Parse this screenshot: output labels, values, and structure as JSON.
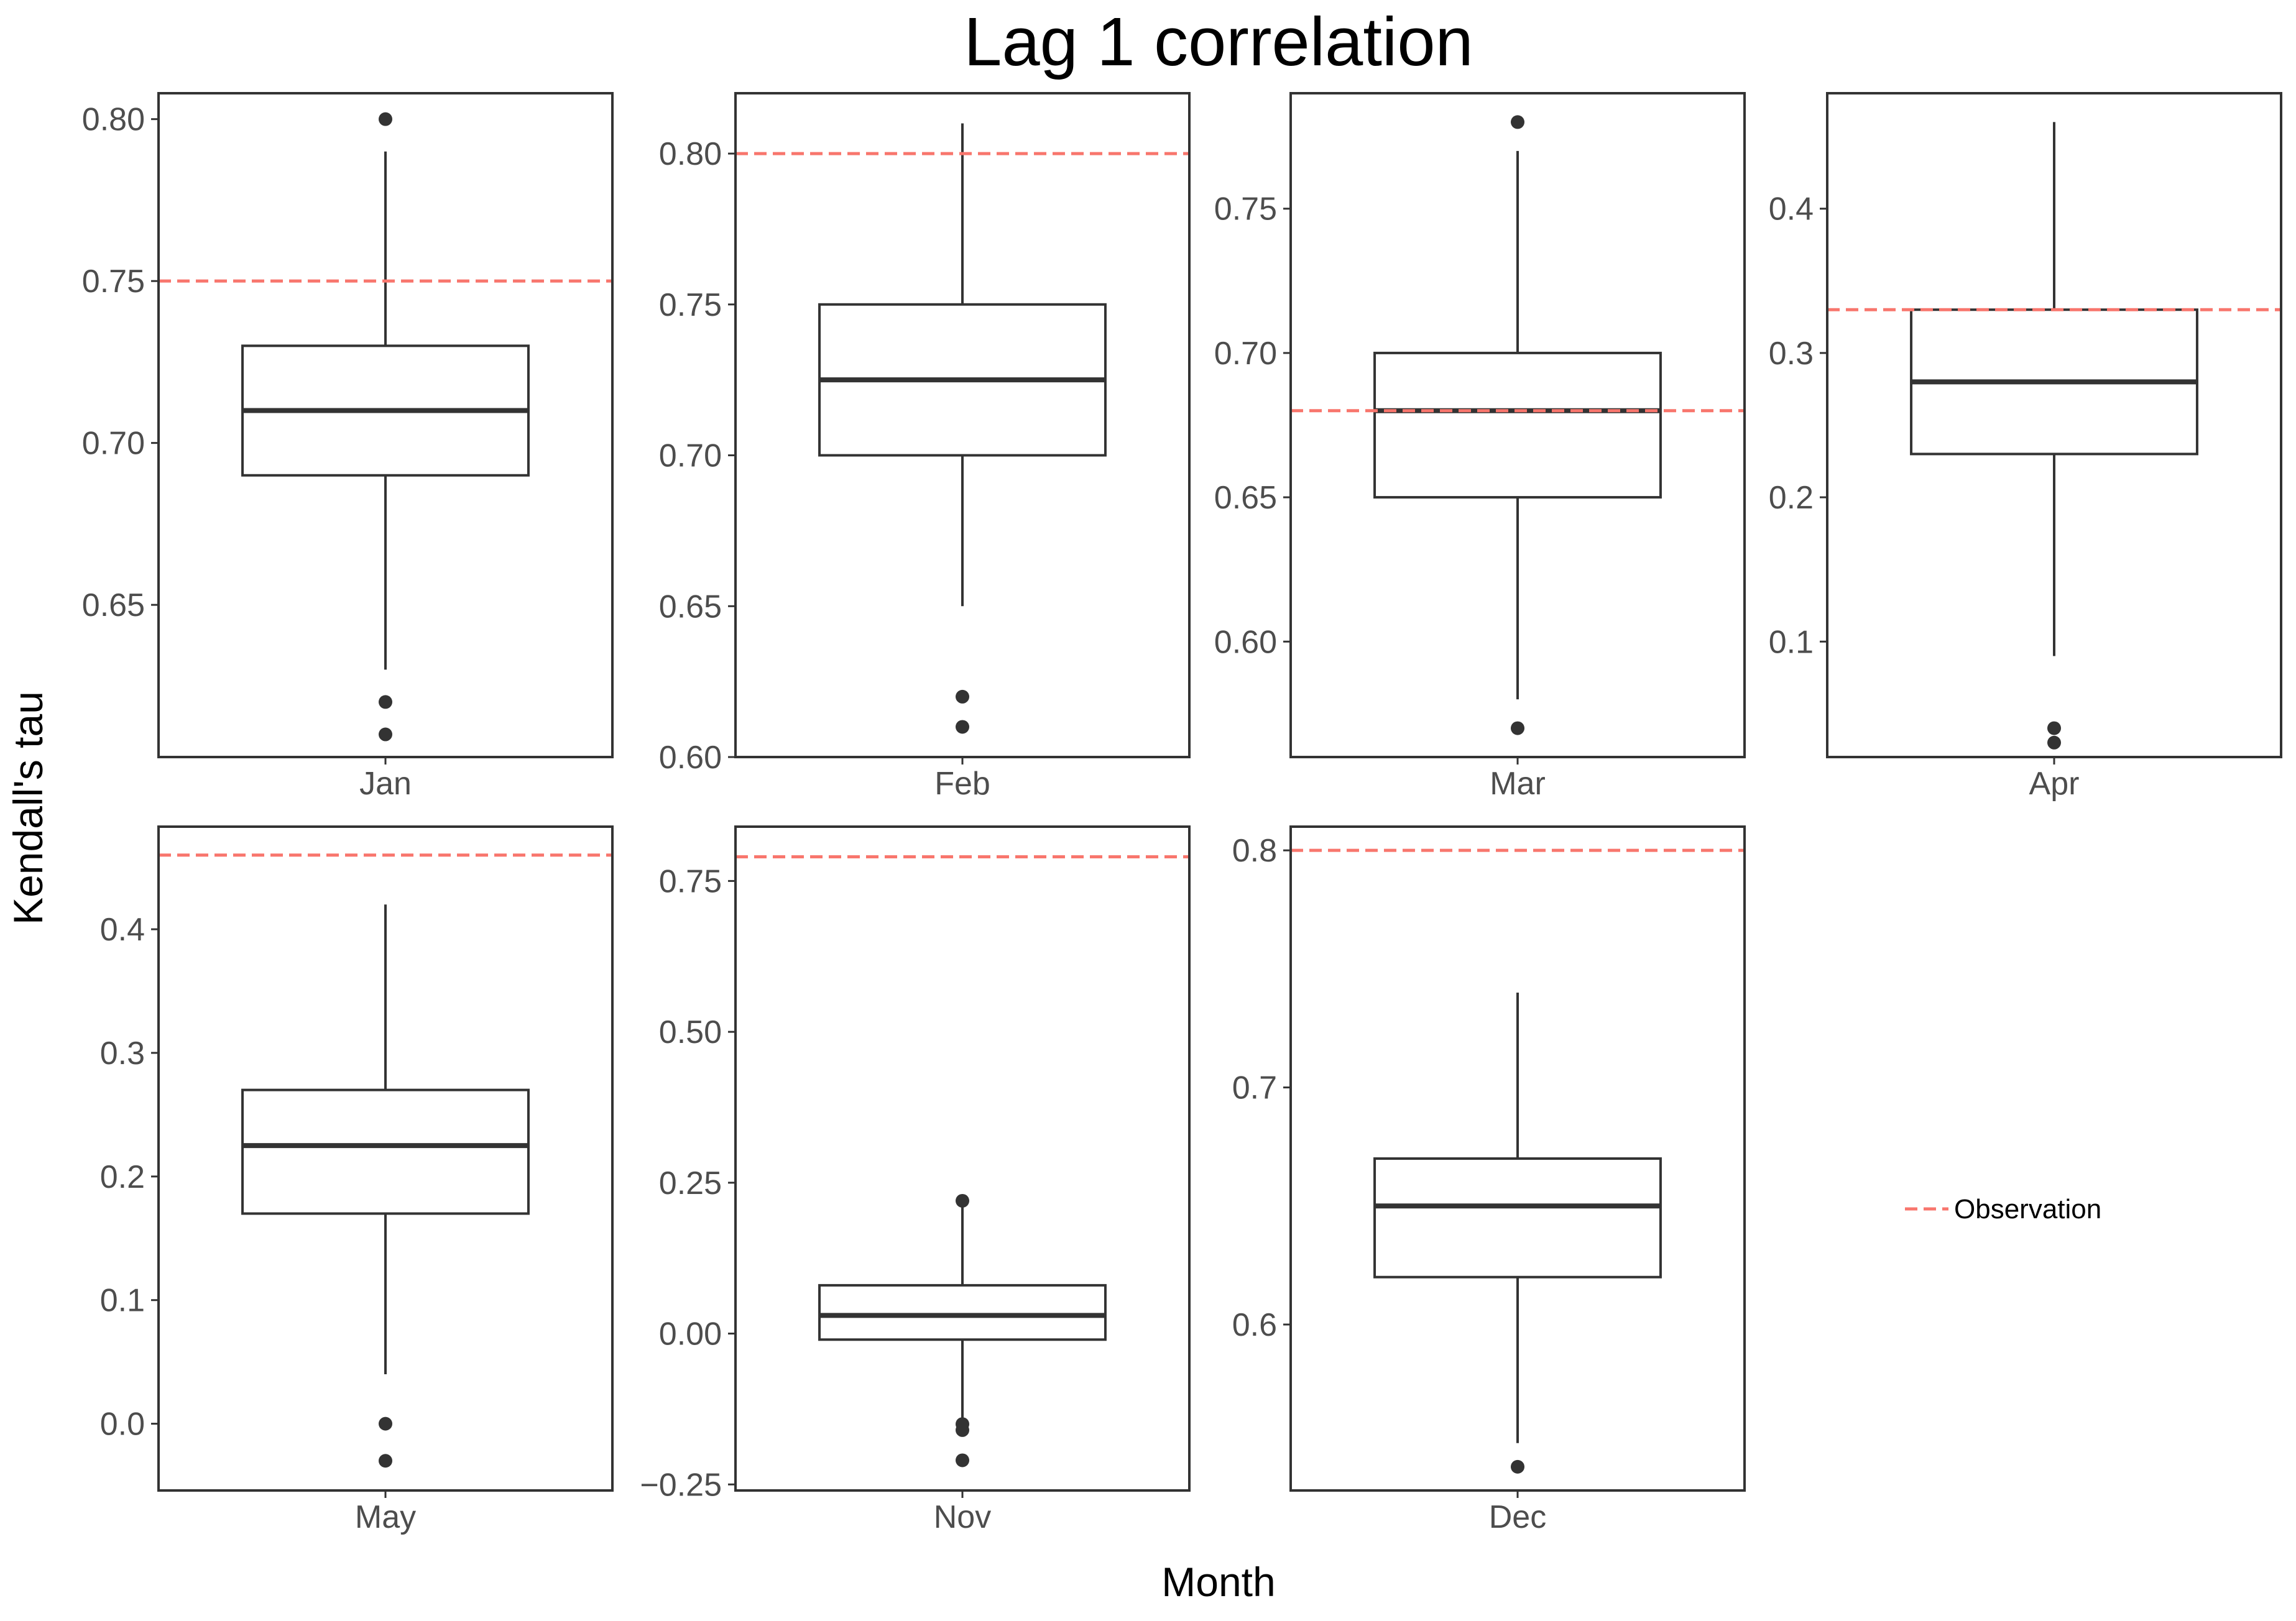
{
  "chart_data": {
    "type": "boxplot",
    "title": "Lag 1 correlation",
    "xlabel": "Month",
    "ylabel": "Kendall's tau",
    "legend": {
      "label": "Observation",
      "placement": "right",
      "color": "#f8766d"
    },
    "colors": {
      "box": "#333333",
      "observation": "#f8766d",
      "tick_text": "#4d4d4d"
    },
    "panels": [
      {
        "month": "Jan",
        "ylim": [
          0.603,
          0.808
        ],
        "ticks": [
          0.65,
          0.7,
          0.75,
          0.8
        ],
        "tick_labels": [
          "0.65",
          "0.70",
          "0.75",
          "0.80"
        ],
        "whisker_low": 0.63,
        "q1": 0.69,
        "median": 0.71,
        "q3": 0.73,
        "whisker_high": 0.79,
        "outliers": [
          0.8,
          0.62,
          0.61
        ],
        "observation": 0.75
      },
      {
        "month": "Feb",
        "ylim": [
          0.6,
          0.82
        ],
        "ticks": [
          0.6,
          0.65,
          0.7,
          0.75,
          0.8
        ],
        "tick_labels": [
          "0.60",
          "0.65",
          "0.70",
          "0.75",
          "0.80"
        ],
        "whisker_low": 0.65,
        "q1": 0.7,
        "median": 0.725,
        "q3": 0.75,
        "whisker_high": 0.81,
        "outliers": [
          0.62,
          0.61
        ],
        "observation": 0.8
      },
      {
        "month": "Mar",
        "ylim": [
          0.56,
          0.79
        ],
        "ticks": [
          0.6,
          0.65,
          0.7,
          0.75
        ],
        "tick_labels": [
          "0.60",
          "0.65",
          "0.70",
          "0.75"
        ],
        "whisker_low": 0.58,
        "q1": 0.65,
        "median": 0.68,
        "q3": 0.7,
        "whisker_high": 0.77,
        "outliers": [
          0.78,
          0.57
        ],
        "observation": 0.68
      },
      {
        "month": "Apr",
        "ylim": [
          0.02,
          0.48
        ],
        "ticks": [
          0.1,
          0.2,
          0.3,
          0.4
        ],
        "tick_labels": [
          "0.1",
          "0.2",
          "0.3",
          "0.4"
        ],
        "whisker_low": 0.09,
        "q1": 0.23,
        "median": 0.28,
        "q3": 0.33,
        "whisker_high": 0.46,
        "outliers": [
          0.04,
          0.03
        ],
        "observation": 0.33
      },
      {
        "month": "May",
        "ylim": [
          -0.054,
          0.483
        ],
        "ticks": [
          0.0,
          0.1,
          0.2,
          0.3,
          0.4
        ],
        "tick_labels": [
          "0.0",
          "0.1",
          "0.2",
          "0.3",
          "0.4"
        ],
        "whisker_low": 0.04,
        "q1": 0.17,
        "median": 0.225,
        "q3": 0.27,
        "whisker_high": 0.42,
        "outliers": [
          0.0,
          -0.03
        ],
        "observation": 0.46
      },
      {
        "month": "Nov",
        "ylim": [
          -0.26,
          0.84
        ],
        "ticks": [
          -0.25,
          0.0,
          0.25,
          0.5,
          0.75
        ],
        "tick_labels": [
          "−0.25",
          "0.00",
          "0.25",
          "0.50",
          "0.75"
        ],
        "whisker_low": -0.15,
        "q1": -0.01,
        "median": 0.03,
        "q3": 0.08,
        "whisker_high": 0.22,
        "outliers": [
          0.22,
          -0.15,
          -0.16,
          -0.21
        ],
        "observation": 0.79
      },
      {
        "month": "Dec",
        "ylim": [
          0.53,
          0.81
        ],
        "ticks": [
          0.6,
          0.7,
          0.8
        ],
        "tick_labels": [
          "0.6",
          "0.7",
          "0.8"
        ],
        "whisker_low": 0.55,
        "q1": 0.62,
        "median": 0.65,
        "q3": 0.67,
        "whisker_high": 0.74,
        "outliers": [
          0.54
        ],
        "observation": 0.8
      }
    ]
  }
}
